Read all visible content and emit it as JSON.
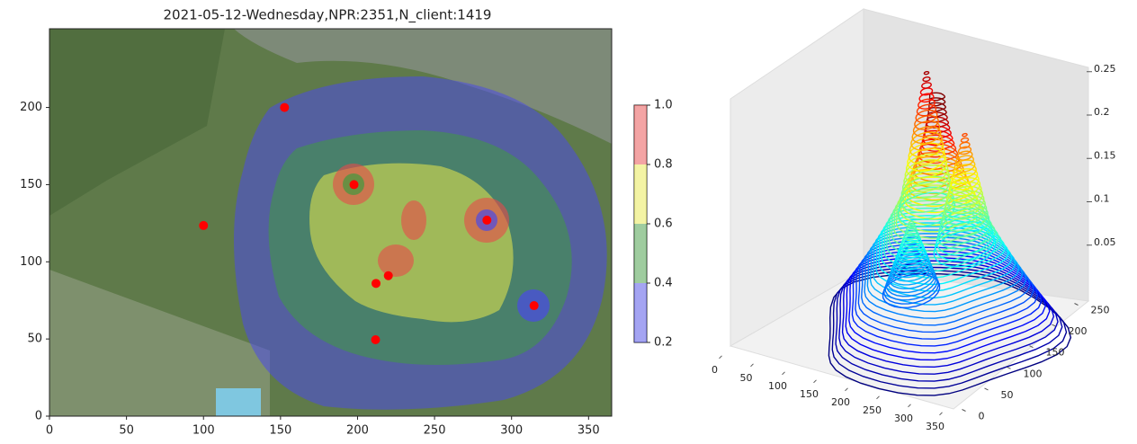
{
  "chart_data": [
    {
      "type": "contour_map",
      "title": "2021-05-12-Wednesday,NPR:2351,N_client:1419",
      "xlim": [
        0,
        365
      ],
      "ylim": [
        0,
        251
      ],
      "xticks": [
        0,
        50,
        100,
        150,
        200,
        250,
        300,
        350
      ],
      "yticks": [
        0,
        50,
        100,
        150,
        200
      ],
      "levels": [
        0.2,
        0.4,
        0.6,
        0.8,
        {
          "value": 1,
          "label": "1.0"
        }
      ],
      "level_colors": [
        "#4a4ae6",
        "#3f9a3f",
        "#e8e84a",
        "#e84a4a"
      ],
      "points": {
        "color": "#ff0000",
        "x": [
          152.6,
          100,
          197.7,
          284,
          212,
          220,
          314.6,
          211.7
        ],
        "y": [
          200,
          123.5,
          150,
          127,
          86,
          91,
          71.6,
          49.5
        ]
      }
    },
    {
      "type": "surface3d",
      "colormap": "jet",
      "xlim": [
        0,
        350
      ],
      "ylim": [
        0,
        250
      ],
      "zlim": [
        0,
        0.25
      ],
      "xticks": [
        0,
        50,
        100,
        150,
        200,
        250,
        300,
        350
      ],
      "yticks": [
        0,
        50,
        100,
        150,
        200,
        250
      ],
      "zticks": [
        0.05,
        0.1,
        0.15,
        0.2,
        0.25
      ]
    }
  ]
}
